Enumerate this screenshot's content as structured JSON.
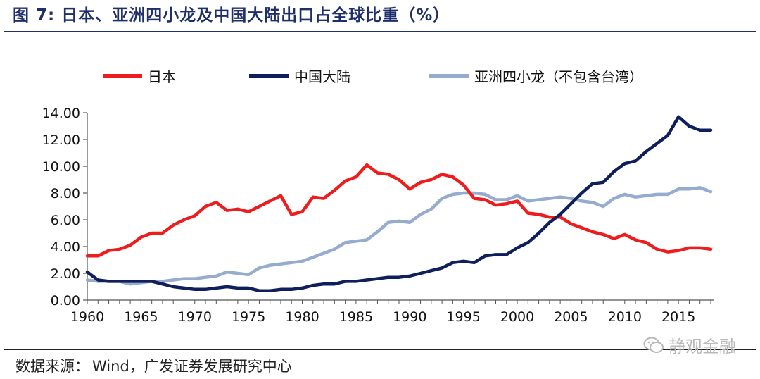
{
  "header": {
    "figure_label": "图 7:",
    "title": "日本、亚洲四小龙及中国大陆出口占全球比重（%）"
  },
  "footer": {
    "source_label": "数据来源",
    "source_text": "Wind，广发证券发展研究中心",
    "watermark": "静观金融"
  },
  "chart_data": {
    "type": "line",
    "title": "日本、亚洲四小龙及中国大陆出口占全球比重（%）",
    "xlabel": "",
    "ylabel": "",
    "xlim": [
      1960,
      2018
    ],
    "ylim": [
      0,
      14
    ],
    "y_ticks": [
      0,
      2,
      4,
      6,
      8,
      10,
      12,
      14
    ],
    "y_tick_labels": [
      "0.00",
      "2.00",
      "4.00",
      "6.00",
      "8.00",
      "10.00",
      "12.00",
      "14.00"
    ],
    "x_ticks": [
      1960,
      1965,
      1970,
      1975,
      1980,
      1985,
      1990,
      1995,
      2000,
      2005,
      2010,
      2015
    ],
    "x_tick_labels": [
      "1960",
      "1965",
      "1970",
      "1975",
      "1980",
      "1985",
      "1990",
      "1995",
      "2000",
      "2005",
      "2010",
      "2015"
    ],
    "grid": false,
    "legend_position": "top",
    "x": [
      1960,
      1961,
      1962,
      1963,
      1964,
      1965,
      1966,
      1967,
      1968,
      1969,
      1970,
      1971,
      1972,
      1973,
      1974,
      1975,
      1976,
      1977,
      1978,
      1979,
      1980,
      1981,
      1982,
      1983,
      1984,
      1985,
      1986,
      1987,
      1988,
      1989,
      1990,
      1991,
      1992,
      1993,
      1994,
      1995,
      1996,
      1997,
      1998,
      1999,
      2000,
      2001,
      2002,
      2003,
      2004,
      2005,
      2006,
      2007,
      2008,
      2009,
      2010,
      2011,
      2012,
      2013,
      2014,
      2015,
      2016,
      2017,
      2018
    ],
    "series": [
      {
        "name": "日本",
        "color": "#ee1c1c",
        "values": [
          3.3,
          3.3,
          3.7,
          3.8,
          4.1,
          4.7,
          5.0,
          5.0,
          5.6,
          6.0,
          6.3,
          7.0,
          7.3,
          6.7,
          6.8,
          6.6,
          7.0,
          7.4,
          7.8,
          6.4,
          6.6,
          7.7,
          7.6,
          8.2,
          8.9,
          9.2,
          10.1,
          9.5,
          9.4,
          9.0,
          8.3,
          8.8,
          9.0,
          9.4,
          9.2,
          8.6,
          7.6,
          7.5,
          7.1,
          7.2,
          7.4,
          6.5,
          6.4,
          6.2,
          6.2,
          5.7,
          5.4,
          5.1,
          4.9,
          4.6,
          4.9,
          4.5,
          4.3,
          3.8,
          3.6,
          3.7,
          3.9,
          3.9,
          3.8
        ]
      },
      {
        "name": "中国大陆",
        "color": "#0e1f5b",
        "values": [
          2.1,
          1.5,
          1.4,
          1.4,
          1.4,
          1.4,
          1.4,
          1.2,
          1.0,
          0.9,
          0.8,
          0.8,
          0.9,
          1.0,
          0.9,
          0.9,
          0.7,
          0.7,
          0.8,
          0.8,
          0.9,
          1.1,
          1.2,
          1.2,
          1.4,
          1.4,
          1.5,
          1.6,
          1.7,
          1.7,
          1.8,
          2.0,
          2.2,
          2.4,
          2.8,
          2.9,
          2.8,
          3.3,
          3.4,
          3.4,
          3.9,
          4.3,
          5.0,
          5.8,
          6.4,
          7.2,
          8.0,
          8.7,
          8.8,
          9.6,
          10.2,
          10.4,
          11.1,
          11.7,
          12.3,
          13.7,
          13.0,
          12.7,
          12.7
        ]
      },
      {
        "name": "亚洲四小龙（不包含台湾）",
        "color": "#95abcf",
        "values": [
          1.5,
          1.4,
          1.4,
          1.4,
          1.2,
          1.3,
          1.4,
          1.4,
          1.5,
          1.6,
          1.6,
          1.7,
          1.8,
          2.1,
          2.0,
          1.9,
          2.4,
          2.6,
          2.7,
          2.8,
          2.9,
          3.2,
          3.5,
          3.8,
          4.3,
          4.4,
          4.5,
          5.1,
          5.8,
          5.9,
          5.8,
          6.4,
          6.8,
          7.6,
          7.9,
          8.0,
          8.0,
          7.9,
          7.5,
          7.5,
          7.8,
          7.4,
          7.5,
          7.6,
          7.7,
          7.6,
          7.4,
          7.3,
          7.0,
          7.6,
          7.9,
          7.7,
          7.8,
          7.9,
          7.9,
          8.3,
          8.3,
          8.4,
          8.1
        ]
      }
    ]
  }
}
